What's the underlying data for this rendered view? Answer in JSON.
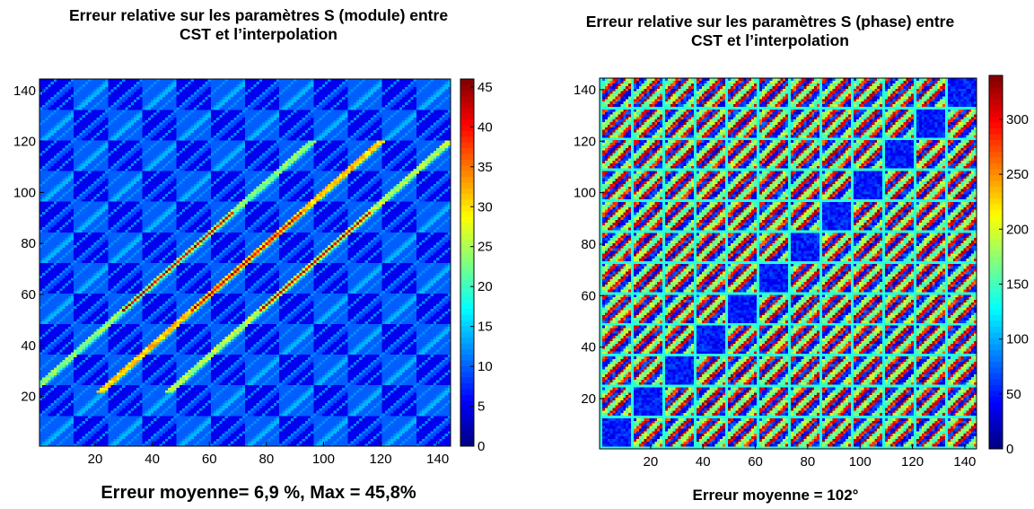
{
  "chart_data": [
    {
      "type": "heatmap",
      "title_line1": "Erreur relative sur les paramètres S (module) entre",
      "title_line2": "CST et l’interpolation",
      "caption": "Erreur moyenne= 6,9 %,  Max = 45,8%",
      "xlabel": "",
      "ylabel": "",
      "xlim": [
        1,
        144
      ],
      "ylim": [
        1,
        144
      ],
      "xticks": [
        20,
        40,
        60,
        80,
        100,
        120,
        140
      ],
      "yticks": [
        20,
        40,
        60,
        80,
        100,
        120,
        140
      ],
      "colorbar": {
        "colormap": "jet",
        "range": [
          0,
          46
        ],
        "ticks": [
          0,
          5,
          10,
          15,
          20,
          25,
          30,
          35,
          40,
          45
        ]
      },
      "grid_size": 144,
      "block_size": 12,
      "summary": {
        "mean_error_percent": 6.9,
        "max_error_percent": 45.8
      },
      "approx_pattern": {
        "background_values": [
          5,
          10
        ],
        "fine_diagonal_stripe_value": 12,
        "main_band_offsets": [
          -24,
          0,
          24
        ],
        "main_band_values": [
          20,
          28,
          22
        ],
        "peak_value": 45.8
      }
    },
    {
      "type": "heatmap",
      "title_line1": "Erreur relative sur les paramètres S (phase) entre",
      "title_line2": "CST et l’interpolation",
      "caption": "Erreur moyenne = 102°",
      "xlabel": "",
      "ylabel": "",
      "xlim": [
        1,
        144
      ],
      "ylim": [
        1,
        144
      ],
      "xticks": [
        20,
        40,
        60,
        80,
        100,
        120,
        140
      ],
      "yticks": [
        20,
        40,
        60,
        80,
        100,
        120,
        140
      ],
      "colorbar": {
        "colormap": "jet",
        "range": [
          0,
          340
        ],
        "ticks": [
          0,
          50,
          100,
          150,
          200,
          250,
          300
        ]
      },
      "grid_size": 144,
      "block_size": 12,
      "summary": {
        "mean_error_degrees": 102
      },
      "approx_pattern": {
        "stripe_values": [
          20,
          140,
          260
        ],
        "block_diagonal_low_value": 30,
        "peak_value": 340
      }
    }
  ]
}
